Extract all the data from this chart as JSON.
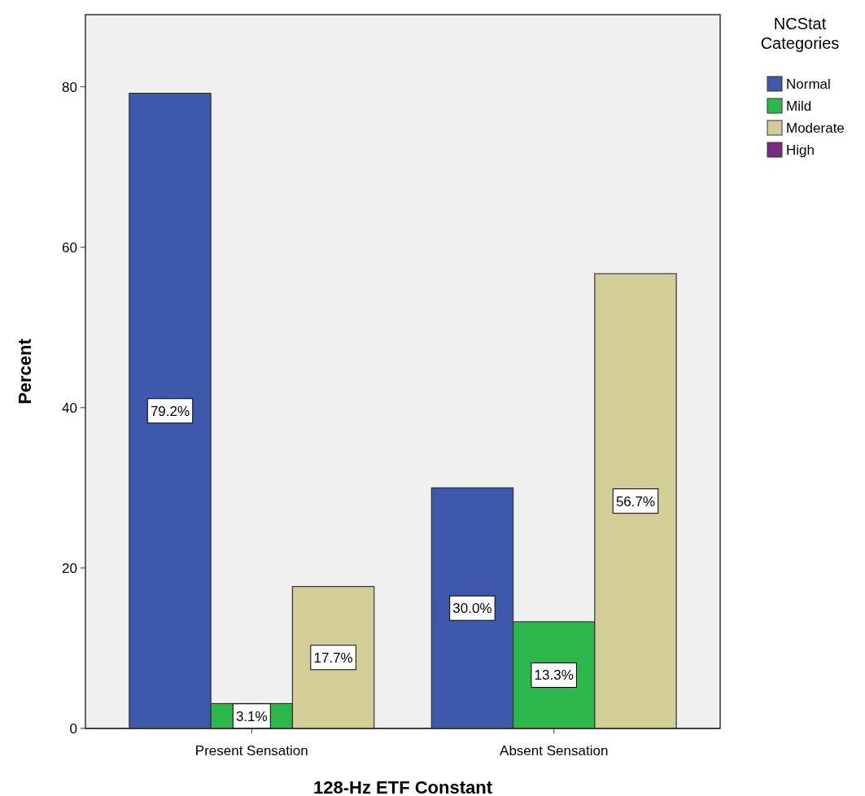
{
  "chart_data": {
    "type": "bar",
    "xlabel": "128-Hz ETF Constant",
    "ylabel": "Percent",
    "legend_title": "NCStat Categories",
    "legend": "top right",
    "grid": false,
    "categories": [
      "Present Sensation",
      "Absent Sensation"
    ],
    "ylim": [
      0,
      89
    ],
    "yticks": [
      0,
      20,
      40,
      60,
      80
    ],
    "series": [
      {
        "name": "Normal",
        "color": "#3e58ac",
        "values": [
          79.2,
          30.0
        ],
        "value_labels": [
          "79.2%",
          "30.0%"
        ]
      },
      {
        "name": "Mild",
        "color": "#2db84c",
        "values": [
          3.1,
          13.3
        ],
        "value_labels": [
          "3.1%",
          "13.3%"
        ]
      },
      {
        "name": "Moderate",
        "color": "#d3ce97",
        "values": [
          17.7,
          56.7
        ],
        "value_labels": [
          "17.7%",
          "56.7%"
        ]
      },
      {
        "name": "High",
        "color": "#7b2b83",
        "values": [
          null,
          null
        ]
      }
    ]
  }
}
